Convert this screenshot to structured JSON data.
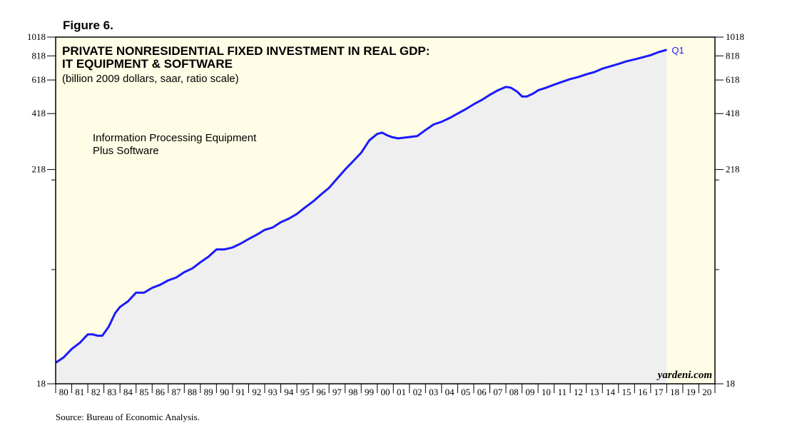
{
  "figure_label": "Figure 6.",
  "source": "Source: Bureau of Economic Analysis.",
  "colors": {
    "plot_bg": "#fffde6",
    "series": "#1a1aff",
    "fill": "#efefef",
    "frame": "#000000"
  },
  "chart_data": {
    "type": "line",
    "title": "PRIVATE NONRESIDENTIAL FIXED INVESTMENT IN REAL GDP:",
    "title_line2": "IT EQUIPMENT & SOFTWARE",
    "subtitle": "(billion 2009 dollars, saar, ratio scale)",
    "annotation": [
      "Information Processing Equipment",
      "Plus Software"
    ],
    "watermark": "yardeni.com",
    "end_label": "Q1",
    "y_scale": "log",
    "ylim": [
      18,
      1018
    ],
    "y_ticks_left": [
      "1018",
      "818",
      "618",
      "418",
      "218",
      "18"
    ],
    "y_ticks_right": [
      "1018",
      "818",
      "618",
      "418",
      "218",
      "18"
    ],
    "y_tick_values": [
      1018,
      818,
      618,
      418,
      218,
      18
    ],
    "xlim": [
      1980,
      2021
    ],
    "x_tick_labels": [
      "80",
      "81",
      "82",
      "83",
      "84",
      "85",
      "86",
      "87",
      "88",
      "89",
      "90",
      "91",
      "92",
      "93",
      "94",
      "95",
      "96",
      "97",
      "98",
      "99",
      "00",
      "01",
      "02",
      "03",
      "04",
      "05",
      "06",
      "07",
      "08",
      "09",
      "10",
      "11",
      "12",
      "13",
      "14",
      "15",
      "16",
      "17",
      "18",
      "19",
      "20"
    ],
    "series": [
      {
        "name": "Information Processing Equipment Plus Software",
        "x": [
          1980.0,
          1980.5,
          1981.0,
          1981.5,
          1982.0,
          1982.3,
          1982.6,
          1982.9,
          1983.3,
          1983.7,
          1984.0,
          1984.5,
          1985.0,
          1985.5,
          1986.0,
          1986.5,
          1987.0,
          1987.5,
          1988.0,
          1988.5,
          1989.0,
          1989.5,
          1990.0,
          1990.5,
          1991.0,
          1991.5,
          1992.0,
          1992.5,
          1993.0,
          1993.5,
          1994.0,
          1994.5,
          1995.0,
          1995.5,
          1996.0,
          1996.5,
          1997.0,
          1997.5,
          1998.0,
          1998.5,
          1999.0,
          1999.5,
          2000.0,
          2000.3,
          2000.6,
          2000.9,
          2001.3,
          2001.7,
          2002.0,
          2002.5,
          2003.0,
          2003.5,
          2004.0,
          2004.5,
          2005.0,
          2005.5,
          2006.0,
          2006.5,
          2007.0,
          2007.5,
          2008.0,
          2008.3,
          2008.7,
          2009.0,
          2009.3,
          2009.7,
          2010.0,
          2010.5,
          2011.0,
          2011.5,
          2012.0,
          2012.5,
          2013.0,
          2013.5,
          2014.0,
          2014.5,
          2015.0,
          2015.5,
          2016.0,
          2016.5,
          2017.0,
          2017.5,
          2018.0
        ],
        "values": [
          23,
          24.5,
          27,
          29,
          32,
          32,
          31.5,
          31.5,
          35,
          41,
          44,
          47,
          52,
          52,
          55,
          57,
          60,
          62,
          66,
          69,
          74,
          79,
          86,
          86,
          88,
          92,
          97,
          102,
          108,
          111,
          118,
          123,
          130,
          140,
          150,
          163,
          176,
          196,
          218,
          240,
          265,
          306,
          330,
          335,
          325,
          318,
          313,
          316,
          318,
          322,
          345,
          368,
          380,
          397,
          418,
          440,
          466,
          490,
          520,
          548,
          570,
          565,
          540,
          510,
          510,
          528,
          548,
          565,
          585,
          605,
          625,
          640,
          660,
          678,
          705,
          725,
          745,
          768,
          785,
          805,
          825,
          855,
          878
        ]
      }
    ]
  }
}
